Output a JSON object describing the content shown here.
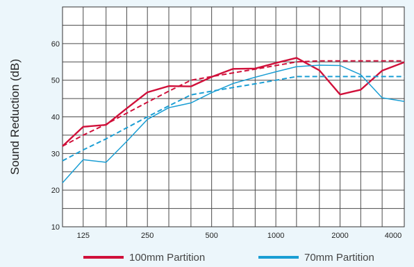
{
  "chart_data": {
    "type": "line",
    "title": "",
    "xlabel": "",
    "ylabel": "Sound Reduction (dB)",
    "x_scale": "log",
    "x_ticks": [
      100,
      125,
      160,
      200,
      250,
      315,
      400,
      500,
      630,
      800,
      1000,
      1250,
      1600,
      2000,
      2500,
      3150,
      4000
    ],
    "x_tick_labels": [
      "",
      "125",
      "",
      "",
      "250",
      "",
      "",
      "500",
      "",
      "",
      "1000",
      "",
      "",
      "2000",
      "",
      "",
      "4000"
    ],
    "xlim": [
      100,
      4000
    ],
    "ylim": [
      10,
      70
    ],
    "y_ticks": [
      10,
      20,
      30,
      40,
      50,
      60
    ],
    "y_tick_labels": [
      "10",
      "20",
      "30",
      "40",
      "50",
      "60"
    ],
    "grid": true,
    "legend_position": "bottom",
    "series": [
      {
        "name": "100mm Partition",
        "style": "solid",
        "color": "#d0103a",
        "x": [
          100,
          125,
          160,
          200,
          250,
          315,
          400,
          500,
          630,
          800,
          1000,
          1250,
          1600,
          2000,
          2500,
          3150,
          4000
        ],
        "values": [
          32,
          37.3,
          37.8,
          42.3,
          46.7,
          48.4,
          48.3,
          50.9,
          53.1,
          53.2,
          54.7,
          56.1,
          52.7,
          46.1,
          47.4,
          52.6,
          54.9
        ]
      },
      {
        "name": "",
        "style": "dashed",
        "color": "#d0103a",
        "x": [
          100,
          125,
          160,
          200,
          250,
          315,
          400,
          500,
          630,
          800,
          1000,
          1250,
          1600,
          2000,
          2500,
          3150,
          4000
        ],
        "values": [
          32,
          35,
          38,
          41,
          44,
          47,
          50,
          51,
          52,
          53,
          54,
          55,
          55.3,
          55.3,
          55.3,
          55.3,
          55.3
        ]
      },
      {
        "name": "70mm Partition",
        "style": "solid",
        "color": "#1a9ed4",
        "x": [
          100,
          125,
          160,
          200,
          250,
          315,
          400,
          500,
          630,
          800,
          1000,
          1250,
          1600,
          2000,
          2500,
          3150,
          4000
        ],
        "values": [
          22,
          28.3,
          27.6,
          33.3,
          39.3,
          42.5,
          43.8,
          46.6,
          49.1,
          50.8,
          52.3,
          53.7,
          54.1,
          54,
          51.5,
          45.2,
          44.2
        ]
      },
      {
        "name": "",
        "style": "dashed",
        "color": "#1a9ed4",
        "x": [
          100,
          125,
          160,
          200,
          250,
          315,
          400,
          500,
          630,
          800,
          1000,
          1250,
          1600,
          2000,
          2500,
          3150,
          4000
        ],
        "values": [
          28,
          31,
          34,
          37,
          40,
          43,
          46,
          47,
          48,
          49,
          50,
          51,
          51,
          51,
          51,
          51,
          51
        ]
      }
    ]
  }
}
